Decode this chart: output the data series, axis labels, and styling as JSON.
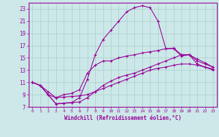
{
  "xlabel": "Windchill (Refroidissement éolien,°C)",
  "ylabel": "",
  "bg_color": "#cce8e8",
  "grid_color": "#aacccc",
  "line_color": "#990099",
  "xlim": [
    -0.5,
    23.5
  ],
  "ylim": [
    7,
    24
  ],
  "xticks": [
    0,
    1,
    2,
    3,
    4,
    5,
    6,
    7,
    8,
    9,
    10,
    11,
    12,
    13,
    14,
    15,
    16,
    17,
    18,
    19,
    20,
    21,
    22,
    23
  ],
  "yticks": [
    7,
    9,
    11,
    13,
    15,
    17,
    19,
    21,
    23
  ],
  "curve1_x": [
    0,
    1,
    2,
    3,
    4,
    5,
    6,
    7,
    8,
    9,
    10,
    11,
    12,
    13,
    14,
    15,
    16,
    17,
    18,
    19,
    20,
    21,
    22,
    23
  ],
  "curve1_y": [
    11.0,
    10.5,
    9.0,
    7.5,
    7.6,
    7.7,
    8.5,
    11.5,
    15.5,
    18.0,
    19.5,
    21.0,
    22.5,
    23.2,
    23.5,
    23.2,
    21.0,
    16.5,
    16.5,
    15.3,
    15.5,
    14.0,
    13.5,
    13.0
  ],
  "curve2_x": [
    0,
    1,
    2,
    3,
    4,
    5,
    6,
    7,
    8,
    9,
    10,
    11,
    12,
    13,
    14,
    15,
    16,
    17,
    18,
    19,
    20,
    21,
    22,
    23
  ],
  "curve2_y": [
    11.0,
    10.5,
    9.5,
    8.5,
    9.0,
    9.2,
    9.8,
    12.5,
    13.8,
    14.5,
    14.5,
    15.0,
    15.3,
    15.5,
    15.8,
    16.0,
    16.2,
    16.5,
    16.6,
    15.5,
    15.5,
    14.5,
    14.0,
    13.5
  ],
  "curve3_x": [
    0,
    1,
    2,
    3,
    4,
    5,
    6,
    7,
    8,
    9,
    10,
    11,
    12,
    13,
    14,
    15,
    16,
    17,
    18,
    19,
    20,
    21,
    22,
    23
  ],
  "curve3_y": [
    11.0,
    10.5,
    9.0,
    7.5,
    7.6,
    7.7,
    7.8,
    8.5,
    9.5,
    10.5,
    11.2,
    11.8,
    12.2,
    12.5,
    13.0,
    13.5,
    14.0,
    14.5,
    15.0,
    15.5,
    15.5,
    14.8,
    14.2,
    13.5
  ],
  "curve4_x": [
    0,
    1,
    2,
    3,
    4,
    5,
    6,
    7,
    8,
    9,
    10,
    11,
    12,
    13,
    14,
    15,
    16,
    17,
    18,
    19,
    20,
    21,
    22,
    23
  ],
  "curve4_y": [
    11.0,
    10.5,
    9.0,
    8.5,
    8.6,
    8.7,
    8.8,
    9.0,
    9.5,
    10.0,
    10.5,
    11.0,
    11.5,
    12.0,
    12.5,
    13.0,
    13.3,
    13.5,
    13.8,
    14.0,
    14.0,
    13.8,
    13.5,
    13.2
  ]
}
